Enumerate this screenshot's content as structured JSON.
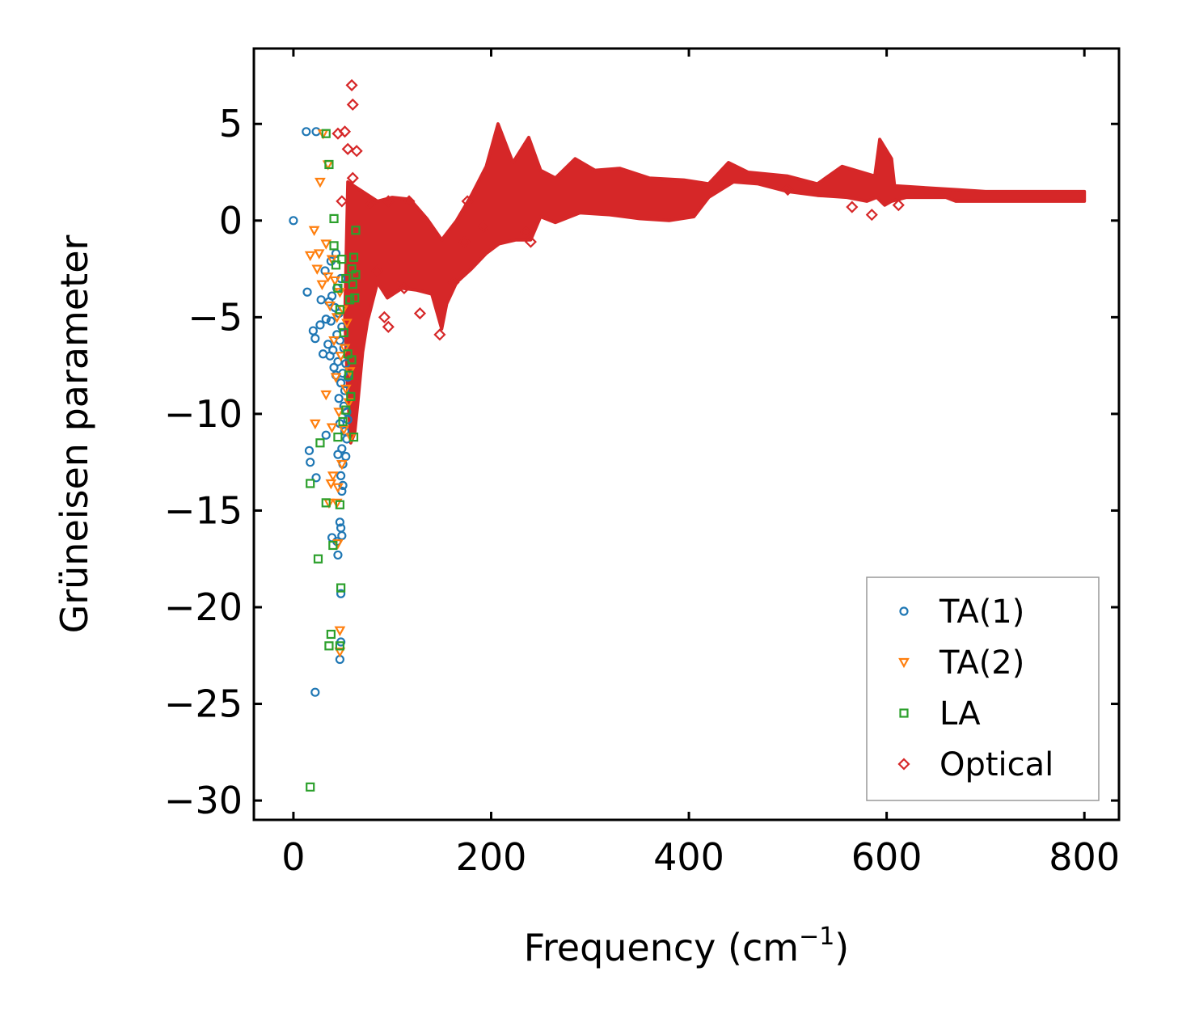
{
  "chart_data": {
    "type": "scatter",
    "title": "",
    "xlabel": "Frequency (cm",
    "xlabel_sup": "−1",
    "xlabel_end": ")",
    "ylabel": "Grüneisen parameter",
    "xlim": [
      -40,
      835
    ],
    "ylim": [
      -31,
      8.9
    ],
    "xticks": [
      0,
      200,
      400,
      600,
      800
    ],
    "yticks": [
      5,
      0,
      -5,
      -10,
      -15,
      -20,
      -25,
      -30
    ],
    "xtick_labels": [
      "0",
      "200",
      "400",
      "600",
      "800"
    ],
    "ytick_labels": [
      "5",
      "0",
      "−5",
      "−10",
      "−15",
      "−20",
      "−25",
      "−30"
    ],
    "legend_position": "lower-right",
    "series": [
      {
        "name": "TA(1)",
        "marker": "circle",
        "color": "#1f77b4",
        "points": [
          [
            0,
            0
          ],
          [
            13,
            4.6
          ],
          [
            23,
            4.6
          ],
          [
            14,
            -3.7
          ],
          [
            20,
            -5.7
          ],
          [
            22,
            -6.1
          ],
          [
            27,
            -5.4
          ],
          [
            28,
            -4.1
          ],
          [
            30,
            -6.9
          ],
          [
            32,
            -2.6
          ],
          [
            33,
            -5.1
          ],
          [
            35,
            -6.4
          ],
          [
            36,
            -4.2
          ],
          [
            37,
            -7.0
          ],
          [
            38,
            -2.1
          ],
          [
            38,
            -5.2
          ],
          [
            39,
            -3.9
          ],
          [
            40,
            -6.7
          ],
          [
            41,
            -7.6
          ],
          [
            42,
            -4.5
          ],
          [
            43,
            -1.7
          ],
          [
            43,
            -8.0
          ],
          [
            44,
            -3.5
          ],
          [
            44,
            -5.9
          ],
          [
            45,
            -7.3
          ],
          [
            46,
            -4.8
          ],
          [
            46,
            -9.2
          ],
          [
            47,
            -6.2
          ],
          [
            47,
            -10.5
          ],
          [
            48,
            -3.0
          ],
          [
            48,
            -8.4
          ],
          [
            49,
            -5.5
          ],
          [
            49,
            -11.8
          ],
          [
            50,
            -7.9
          ],
          [
            50,
            -12.6
          ],
          [
            51,
            -9.6
          ],
          [
            51,
            -6.6
          ],
          [
            52,
            -10.9
          ],
          [
            52,
            -8.8
          ],
          [
            53,
            -12.2
          ],
          [
            53,
            -7.4
          ],
          [
            54,
            -9.9
          ],
          [
            54,
            -11.3
          ],
          [
            55,
            -8.1
          ],
          [
            55,
            -10.3
          ],
          [
            48,
            -13.2
          ],
          [
            50,
            -13.7
          ],
          [
            49,
            -14.0
          ],
          [
            47,
            -15.6
          ],
          [
            48,
            -15.9
          ],
          [
            49,
            -16.3
          ],
          [
            39,
            -16.4
          ],
          [
            44,
            -16.6
          ],
          [
            45,
            -17.3
          ],
          [
            48,
            -19.3
          ],
          [
            48,
            -21.8
          ],
          [
            47,
            -22.7
          ],
          [
            16,
            -11.9
          ],
          [
            17,
            -12.5
          ],
          [
            23,
            -13.3
          ],
          [
            33,
            -11.1
          ],
          [
            45,
            -12.1
          ],
          [
            22,
            -24.4
          ]
        ]
      },
      {
        "name": "TA(2)",
        "marker": "triangle-down",
        "color": "#ff7f0e",
        "points": [
          [
            30,
            4.5
          ],
          [
            35,
            2.9
          ],
          [
            27,
            2.0
          ],
          [
            17,
            -1.8
          ],
          [
            21,
            -0.5
          ],
          [
            24,
            -2.5
          ],
          [
            26,
            -1.7
          ],
          [
            29,
            -3.3
          ],
          [
            33,
            -1.2
          ],
          [
            35,
            -2.9
          ],
          [
            37,
            -4.4
          ],
          [
            39,
            -2.0
          ],
          [
            41,
            -6.2
          ],
          [
            42,
            -3.1
          ],
          [
            43,
            -8.1
          ],
          [
            44,
            -5.0
          ],
          [
            46,
            -9.9
          ],
          [
            47,
            -3.7
          ],
          [
            48,
            -7.0
          ],
          [
            50,
            -4.6
          ],
          [
            51,
            -10.8
          ],
          [
            52,
            -6.6
          ],
          [
            53,
            -8.7
          ],
          [
            54,
            -5.3
          ],
          [
            56,
            -9.4
          ],
          [
            57,
            -7.8
          ],
          [
            58,
            -11.2
          ],
          [
            49,
            -12.6
          ],
          [
            40,
            -13.2
          ],
          [
            38,
            -13.6
          ],
          [
            45,
            -13.8
          ],
          [
            36,
            -14.6
          ],
          [
            44,
            -14.6
          ],
          [
            45,
            -16.7
          ],
          [
            47,
            -21.2
          ],
          [
            47,
            -22.3
          ],
          [
            22,
            -10.5
          ],
          [
            33,
            -9.0
          ],
          [
            39,
            -10.7
          ]
        ]
      },
      {
        "name": "LA",
        "marker": "square",
        "color": "#2ca02c",
        "points": [
          [
            33,
            4.5
          ],
          [
            36,
            2.9
          ],
          [
            41,
            0.1
          ],
          [
            41,
            -1.3
          ],
          [
            63,
            -0.5
          ],
          [
            43,
            -2.3
          ],
          [
            45,
            -3.5
          ],
          [
            47,
            -4.6
          ],
          [
            49,
            -2.0
          ],
          [
            51,
            -5.8
          ],
          [
            53,
            -3.0
          ],
          [
            55,
            -6.9
          ],
          [
            57,
            -4.1
          ],
          [
            59,
            -2.5
          ],
          [
            60,
            -3.3
          ],
          [
            61,
            -1.9
          ],
          [
            62,
            -4.0
          ],
          [
            63,
            -2.8
          ],
          [
            56,
            -8.0
          ],
          [
            58,
            -9.1
          ],
          [
            59,
            -7.2
          ],
          [
            61,
            -11.2
          ],
          [
            53,
            -9.8
          ],
          [
            50,
            -10.4
          ],
          [
            45,
            -11.2
          ],
          [
            27,
            -11.5
          ],
          [
            17,
            -13.6
          ],
          [
            33,
            -14.6
          ],
          [
            47,
            -14.7
          ],
          [
            40,
            -16.8
          ],
          [
            25,
            -17.5
          ],
          [
            48,
            -19.0
          ],
          [
            38,
            -21.4
          ],
          [
            36,
            -22.0
          ],
          [
            47,
            -22.0
          ],
          [
            17,
            -29.3
          ]
        ]
      }
    ],
    "optical_series": {
      "name": "Optical",
      "marker": "diamond",
      "color": "#d62728",
      "outliers": [
        [
          59,
          7.0
        ],
        [
          60,
          6.0
        ],
        [
          45,
          4.5
        ],
        [
          52,
          4.6
        ],
        [
          55,
          3.7
        ],
        [
          64,
          3.6
        ],
        [
          60,
          2.2
        ],
        [
          49,
          1.0
        ],
        [
          78,
          0.8
        ],
        [
          96,
          1.0
        ],
        [
          117,
          1.0
        ],
        [
          85,
          -2.6
        ],
        [
          92,
          -5.0
        ],
        [
          96,
          -5.5
        ],
        [
          112,
          -3.5
        ],
        [
          128,
          -4.8
        ],
        [
          148,
          -5.9
        ],
        [
          162,
          -3.2
        ],
        [
          173,
          -1.1
        ],
        [
          176,
          1.0
        ],
        [
          193,
          -0.3
        ],
        [
          235,
          -0.6
        ],
        [
          240,
          -1.1
        ],
        [
          500,
          1.6
        ],
        [
          565,
          0.7
        ],
        [
          585,
          0.3
        ],
        [
          612,
          0.8
        ]
      ],
      "band_upper": [
        [
          55,
          2.0
        ],
        [
          70,
          1.5
        ],
        [
          85,
          1.0
        ],
        [
          100,
          1.2
        ],
        [
          118,
          1.1
        ],
        [
          135,
          0.1
        ],
        [
          150,
          -1.0
        ],
        [
          165,
          0.0
        ],
        [
          180,
          1.3
        ],
        [
          195,
          2.8
        ],
        [
          207,
          5.0
        ],
        [
          222,
          3.0
        ],
        [
          238,
          4.3
        ],
        [
          250,
          2.6
        ],
        [
          265,
          2.2
        ],
        [
          285,
          3.2
        ],
        [
          305,
          2.6
        ],
        [
          330,
          2.7
        ],
        [
          360,
          2.2
        ],
        [
          395,
          2.1
        ],
        [
          420,
          1.9
        ],
        [
          440,
          3.0
        ],
        [
          460,
          2.5
        ],
        [
          500,
          2.3
        ],
        [
          530,
          1.9
        ],
        [
          555,
          2.8
        ],
        [
          575,
          2.5
        ],
        [
          588,
          2.3
        ],
        [
          593,
          4.2
        ],
        [
          605,
          3.2
        ],
        [
          608,
          1.8
        ],
        [
          670,
          1.6
        ],
        [
          700,
          1.5
        ],
        [
          780,
          1.5
        ],
        [
          800,
          1.5
        ]
      ],
      "band_lower": [
        [
          800,
          1.0
        ],
        [
          780,
          1.0
        ],
        [
          700,
          1.0
        ],
        [
          670,
          1.0
        ],
        [
          660,
          1.2
        ],
        [
          620,
          1.2
        ],
        [
          605,
          1.0
        ],
        [
          598,
          0.8
        ],
        [
          590,
          1.2
        ],
        [
          580,
          1.0
        ],
        [
          560,
          1.2
        ],
        [
          530,
          1.3
        ],
        [
          500,
          1.5
        ],
        [
          470,
          1.9
        ],
        [
          445,
          2.0
        ],
        [
          420,
          1.2
        ],
        [
          405,
          0.2
        ],
        [
          380,
          0.0
        ],
        [
          350,
          0.1
        ],
        [
          320,
          0.3
        ],
        [
          290,
          0.4
        ],
        [
          265,
          -0.1
        ],
        [
          250,
          0.2
        ],
        [
          240,
          -1.0
        ],
        [
          225,
          -1.0
        ],
        [
          208,
          -1.2
        ],
        [
          195,
          -1.7
        ],
        [
          180,
          -2.5
        ],
        [
          165,
          -3.2
        ],
        [
          155,
          -4.3
        ],
        [
          150,
          -5.6
        ],
        [
          140,
          -3.8
        ],
        [
          125,
          -3.6
        ],
        [
          110,
          -3.5
        ],
        [
          95,
          -4.0
        ],
        [
          85,
          -3.2
        ],
        [
          75,
          -5.2
        ],
        [
          70,
          -6.8
        ],
        [
          65,
          -9.5
        ],
        [
          62,
          -11.0
        ],
        [
          58,
          -11.5
        ],
        [
          55,
          -9.0
        ],
        [
          52,
          -5.0
        ]
      ]
    }
  }
}
